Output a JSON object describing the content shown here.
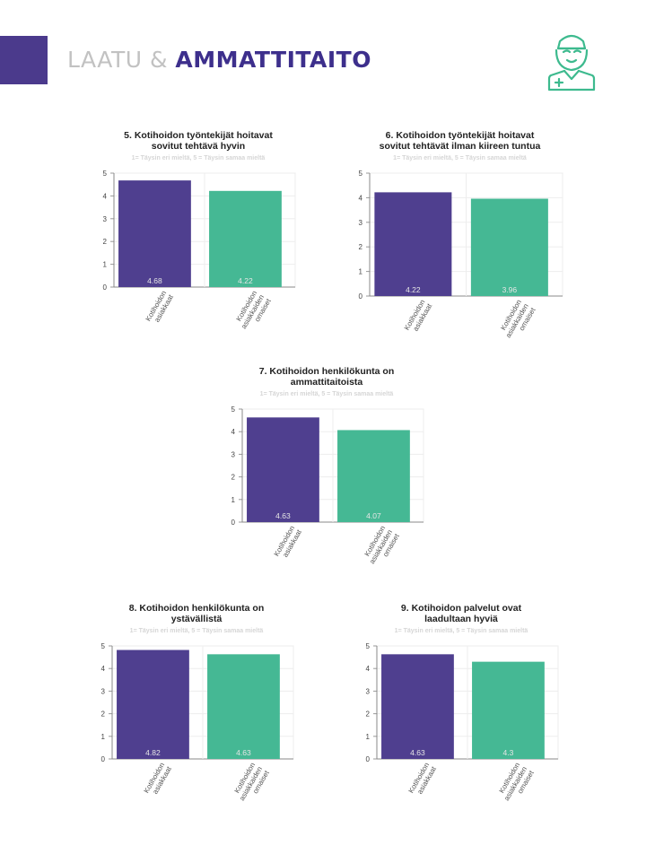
{
  "header": {
    "title_light": "LAATU & ",
    "title_bold": "AMMATTITAITO",
    "icon": "nurse-icon",
    "colors": {
      "accent": "#4b3a8c",
      "title_light": "#c2c2c2",
      "title_bold": "#3d2f8c",
      "icon": "#3dba8e"
    }
  },
  "chart_data": [
    {
      "type": "bar",
      "title": "5. Kotihoidon työntekijät hoitavat sovitut tehtävä hyvin",
      "subtitle": "1= Täysin eri mieltä, 5 = Täysin samaa mieltä",
      "categories": [
        "Kotihoidon asiakkaat",
        "Kotihoidon asiakkaiden omaiset"
      ],
      "values": [
        4.68,
        4.22
      ],
      "ylim": [
        0,
        5
      ],
      "yticks": [
        0,
        1,
        2,
        3,
        4,
        5
      ],
      "colors": [
        "#4f3f8f",
        "#45b894"
      ],
      "grid": true
    },
    {
      "type": "bar",
      "title": "6. Kotihoidon työntekijät hoitavat sovitut tehtävät ilman kiireen tuntua",
      "subtitle": "1= Täysin eri mieltä, 5 = Täysin samaa mieltä",
      "categories": [
        "Kotihoidon asiakkaat",
        "Kotihoidon asiakkaiden omaiset"
      ],
      "values": [
        4.22,
        3.96
      ],
      "ylim": [
        0,
        5
      ],
      "yticks": [
        0,
        1,
        2,
        3,
        4,
        5
      ],
      "colors": [
        "#4f3f8f",
        "#45b894"
      ],
      "grid": true
    },
    {
      "type": "bar",
      "title": "7. Kotihoidon henkilökunta on ammattitaitoista",
      "subtitle": "1= Täysin eri mieltä, 5 = Täysin samaa mieltä",
      "categories": [
        "Kotihoidon asiakkaat",
        "Kotihoidon asiakkaiden omaiset"
      ],
      "values": [
        4.63,
        4.07
      ],
      "ylim": [
        0,
        5
      ],
      "yticks": [
        0,
        1,
        2,
        3,
        4,
        5
      ],
      "colors": [
        "#4f3f8f",
        "#45b894"
      ],
      "grid": true
    },
    {
      "type": "bar",
      "title": "8. Kotihoidon henkilökunta on ystävällistä",
      "subtitle": "1= Täysin eri mieltä, 5 = Täysin samaa mieltä",
      "categories": [
        "Kotihoidon asiakkaat",
        "Kotihoidon asiakkaiden omaiset"
      ],
      "values": [
        4.82,
        4.63
      ],
      "ylim": [
        0,
        5
      ],
      "yticks": [
        0,
        1,
        2,
        3,
        4,
        5
      ],
      "colors": [
        "#4f3f8f",
        "#45b894"
      ],
      "grid": true
    },
    {
      "type": "bar",
      "title": "9. Kotihoidon palvelut ovat laadultaan hyviä",
      "subtitle": "1= Täysin eri mieltä, 5 = Täysin samaa mieltä",
      "categories": [
        "Kotihoidon asiakkaat",
        "Kotihoidon asiakkaiden omaiset"
      ],
      "values": [
        4.63,
        4.3
      ],
      "ylim": [
        0,
        5
      ],
      "yticks": [
        0,
        1,
        2,
        3,
        4,
        5
      ],
      "colors": [
        "#4f3f8f",
        "#45b894"
      ],
      "grid": true
    }
  ]
}
